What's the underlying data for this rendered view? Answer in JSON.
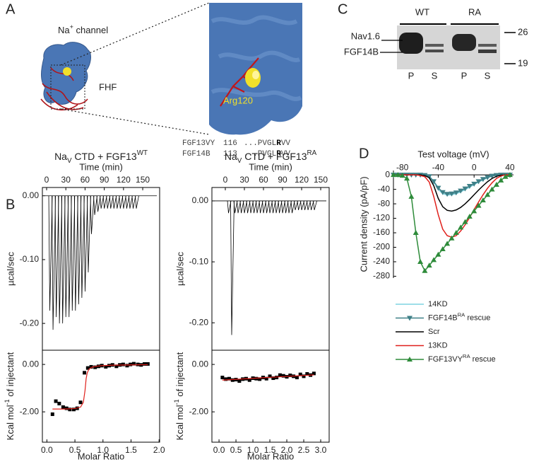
{
  "panel_labels": [
    "A",
    "B",
    "C",
    "D"
  ],
  "panel_a": {
    "channel_label": "Na+ channel",
    "fhf_label": "FHF",
    "residue_label": "Arg120",
    "alignment": [
      {
        "name": "FGF13VY",
        "start": 116,
        "sequence": "...PVGLRVV"
      },
      {
        "name": "FGF14B",
        "start": 113,
        "sequence": "...PVGLRVV"
      }
    ]
  },
  "panel_c": {
    "groups": [
      "WT",
      "RA"
    ],
    "lanes": [
      "P",
      "S",
      "P",
      "S"
    ],
    "bands": [
      "Nav1.6",
      "FGF14B"
    ],
    "markers": [
      26,
      19
    ]
  },
  "chart_data": [
    {
      "type": "trace",
      "title": "NaV CTD + FGF13WT",
      "xlabel": "Time (min)",
      "ylabel": "µcal/sec",
      "color": "#000000",
      "x": [
        5,
        10,
        15,
        20,
        25,
        30,
        35,
        40,
        45,
        50,
        55,
        60,
        65,
        70,
        75,
        80,
        85,
        90,
        95,
        100,
        105,
        110,
        115,
        120,
        125,
        130,
        135,
        140
      ],
      "values": [
        -0.18,
        -0.21,
        -0.19,
        -0.2,
        -0.2,
        -0.19,
        -0.19,
        -0.18,
        -0.18,
        -0.17,
        -0.16,
        -0.15,
        -0.12,
        -0.06,
        -0.03,
        -0.025,
        -0.02,
        -0.02,
        -0.02,
        -0.02,
        -0.02,
        -0.02,
        -0.02,
        -0.02,
        -0.02,
        -0.02,
        -0.02,
        -0.02
      ],
      "xlim": [
        -6.6,
        176.4
      ],
      "ylim": [
        -0.242,
        0.013
      ],
      "xticks": [
        0,
        30,
        60,
        90,
        120,
        150
      ],
      "yticks": [
        {
          "value": 0,
          "label": "0.00"
        },
        {
          "value": -0.1,
          "label": "-0.10"
        },
        {
          "value": -0.2,
          "label": "-0.20"
        }
      ]
    },
    {
      "type": "scatter",
      "xlabel": "Molar Ratio",
      "ylabel": "Kcal mol-1 of injectant",
      "series": [
        {
          "color": "#000000",
          "marker": "square",
          "x": [
            0.1,
            0.16,
            0.22,
            0.29,
            0.35,
            0.41,
            0.48,
            0.54,
            0.6,
            0.67,
            0.73,
            0.79,
            0.86,
            0.92,
            0.98,
            1.05,
            1.11,
            1.17,
            1.24,
            1.3,
            1.36,
            1.43,
            1.49,
            1.55,
            1.62,
            1.68,
            1.74,
            1.8
          ],
          "values": [
            -2.1,
            -1.55,
            -1.65,
            -1.8,
            -1.85,
            -1.9,
            -1.9,
            -1.85,
            -1.6,
            -0.35,
            -0.15,
            -0.1,
            -0.12,
            -0.08,
            -0.05,
            -0.1,
            -0.05,
            -0.02,
            -0.08,
            -0.02,
            0,
            -0.05,
            0,
            0.03,
            0,
            -0.02,
            0.02,
            0.02
          ]
        },
        {
          "color": "#e0201b",
          "marker": "none",
          "x": [
            0.1,
            0.3,
            0.5,
            0.6,
            0.65,
            0.68,
            0.7,
            0.72,
            0.75,
            0.8,
            0.9,
            1.0,
            1.2,
            1.5,
            1.8
          ],
          "values": [
            -1.88,
            -1.88,
            -1.86,
            -1.8,
            -1.6,
            -1.1,
            -0.6,
            -0.35,
            -0.2,
            -0.12,
            -0.07,
            -0.05,
            -0.03,
            -0.02,
            -0.01
          ]
        }
      ],
      "xlim": [
        -0.08,
        2.01
      ],
      "ylim": [
        -3.28,
        0.6
      ],
      "xticks": [
        {
          "value": 0,
          "label": "0.0"
        },
        {
          "value": 0.5,
          "label": "0.5"
        },
        {
          "value": 1,
          "label": "1.0"
        },
        {
          "value": 1.5,
          "label": "1.5"
        },
        {
          "value": 2,
          "label": "2.0"
        }
      ],
      "yticks": [
        {
          "value": 0,
          "label": "0.00"
        },
        {
          "value": -2,
          "label": "-2.00"
        }
      ]
    },
    {
      "type": "trace",
      "title": "NaV CTD + FGF13RA",
      "xlabel": "Time (min)",
      "ylabel": "µcal/sec",
      "color": "#000000",
      "x": [
        5,
        10,
        15,
        20,
        25,
        30,
        35,
        40,
        45,
        50,
        55,
        60,
        65,
        70,
        75,
        80,
        85,
        90,
        95,
        100,
        105,
        110,
        115,
        120,
        125,
        130,
        135,
        140
      ],
      "values": [
        -0.02,
        -0.22,
        -0.02,
        -0.02,
        -0.02,
        -0.02,
        -0.02,
        -0.02,
        -0.02,
        -0.02,
        -0.02,
        -0.02,
        -0.02,
        -0.02,
        -0.02,
        -0.02,
        -0.02,
        -0.02,
        -0.02,
        -0.02,
        -0.02,
        -0.015,
        -0.015,
        -0.015,
        -0.015,
        -0.015,
        -0.015,
        -0.015
      ],
      "xlim": [
        -21.1,
        163.3
      ],
      "ylim": [
        -0.245,
        0.022
      ],
      "xticks": [
        0,
        30,
        60,
        90,
        120,
        150
      ],
      "yticks": [
        {
          "value": 0,
          "label": "0.00"
        },
        {
          "value": -0.1,
          "label": "-0.10"
        },
        {
          "value": -0.2,
          "label": "-0.20"
        }
      ]
    },
    {
      "type": "scatter",
      "xlabel": "Molar Ratio",
      "ylabel": "Kcal mol-1 of injectant",
      "series": [
        {
          "color": "#000000",
          "marker": "square",
          "x": [
            0.1,
            0.2,
            0.3,
            0.4,
            0.5,
            0.6,
            0.7,
            0.8,
            0.9,
            1.0,
            1.1,
            1.2,
            1.3,
            1.4,
            1.5,
            1.6,
            1.7,
            1.8,
            1.9,
            2.0,
            2.1,
            2.2,
            2.3,
            2.4,
            2.5,
            2.6,
            2.7,
            2.8
          ],
          "values": [
            -0.55,
            -0.62,
            -0.6,
            -0.66,
            -0.64,
            -0.7,
            -0.62,
            -0.6,
            -0.66,
            -0.58,
            -0.6,
            -0.62,
            -0.55,
            -0.6,
            -0.5,
            -0.58,
            -0.55,
            -0.45,
            -0.48,
            -0.52,
            -0.46,
            -0.5,
            -0.55,
            -0.42,
            -0.5,
            -0.4,
            -0.45,
            -0.38
          ]
        },
        {
          "color": "#e0201b",
          "marker": "none",
          "x": [
            0.1,
            2.8
          ],
          "values": [
            -0.66,
            -0.44
          ]
        }
      ],
      "xlim": [
        -0.21,
        3.25
      ],
      "ylim": [
        -3.28,
        0.6
      ],
      "xticks": [
        {
          "value": 0,
          "label": "0.0"
        },
        {
          "value": 0.5,
          "label": "0.5"
        },
        {
          "value": 1,
          "label": "1.0"
        },
        {
          "value": 1.5,
          "label": "1.5"
        },
        {
          "value": 2,
          "label": "2.0"
        },
        {
          "value": 2.5,
          "label": "2.5"
        },
        {
          "value": 3,
          "label": "3.0"
        }
      ],
      "yticks": [
        {
          "value": 0,
          "label": "0.00"
        },
        {
          "value": -2,
          "label": "-2.00"
        }
      ]
    },
    {
      "type": "line",
      "xlabel": "Test voltage (mV)",
      "ylabel": "Current density (pA/pF)",
      "legend": "below",
      "x": [
        -90,
        -85,
        -80,
        -75,
        -70,
        -65,
        -60,
        -55,
        -50,
        -45,
        -40,
        -35,
        -30,
        -25,
        -20,
        -15,
        -10,
        -5,
        0,
        5,
        10,
        15,
        20,
        25,
        30,
        35,
        40
      ],
      "series": [
        {
          "name": "14KD",
          "color": "#7fd3e0",
          "marker": "none",
          "values": [
            0,
            0,
            0,
            0,
            0,
            0,
            0,
            -1,
            -5,
            -20,
            -40,
            -52,
            -56,
            -55,
            -52,
            -47,
            -41,
            -34,
            -27,
            -20,
            -14,
            -8,
            -4,
            -1,
            0,
            0,
            0
          ]
        },
        {
          "name": "FGF14BRA rescue",
          "color": "#3f8088",
          "marker": "triangle-down",
          "values": [
            0,
            0,
            0,
            0,
            0,
            0,
            0,
            -1,
            -4,
            -18,
            -36,
            -48,
            -53,
            -52,
            -49,
            -44,
            -38,
            -31,
            -25,
            -18,
            -12,
            -7,
            -3,
            -1,
            0,
            0,
            0
          ]
        },
        {
          "name": "Scr",
          "color": "#000000",
          "marker": "none",
          "values": [
            0,
            0,
            0,
            0,
            0,
            0,
            0,
            -2,
            -8,
            -30,
            -65,
            -88,
            -98,
            -100,
            -97,
            -90,
            -80,
            -68,
            -55,
            -42,
            -30,
            -19,
            -10,
            -4,
            -1,
            0,
            0
          ]
        },
        {
          "name": "13KD",
          "color": "#e0201b",
          "marker": "none",
          "values": [
            0,
            0,
            0,
            0,
            0,
            0,
            -2,
            -5,
            -20,
            -60,
            -110,
            -150,
            -168,
            -172,
            -168,
            -155,
            -138,
            -118,
            -96,
            -75,
            -55,
            -37,
            -22,
            -10,
            -3,
            0,
            0
          ]
        },
        {
          "name": "FGF13VYRA rescue",
          "color": "#2e8b3a",
          "marker": "triangle-up",
          "values": [
            0,
            0,
            -2,
            -10,
            -60,
            -160,
            -240,
            -265,
            -250,
            -235,
            -220,
            -205,
            -190,
            -175,
            -160,
            -145,
            -130,
            -115,
            -100,
            -85,
            -70,
            -55,
            -40,
            -27,
            -15,
            -5,
            0
          ]
        }
      ],
      "xlim": [
        -90,
        44
      ],
      "ylim": [
        -285,
        12
      ],
      "xticks": [
        -80,
        -40,
        0,
        40
      ],
      "yticks": [
        0,
        -40,
        -80,
        -120,
        -160,
        -200,
        -240,
        -280
      ]
    }
  ]
}
